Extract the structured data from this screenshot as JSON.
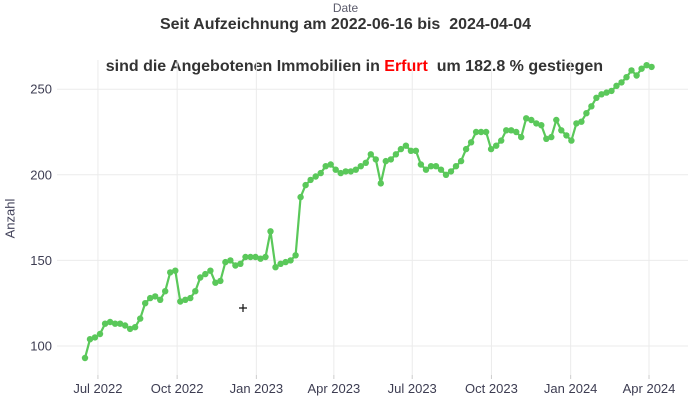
{
  "x_axis_title": "Date",
  "title": {
    "line1": "Seit Aufzeichnung am 2022-06-16 bis  2024-04-04",
    "line2_prefix": "sind die Angebotenen Immobilien in ",
    "city": "Erfurt",
    "line2_suffix": "  um 182.8 % gestiegen"
  },
  "y_axis": {
    "title": "Anzahl",
    "tick_values": [
      100,
      150,
      200,
      250
    ]
  },
  "x_axis": {
    "tick_labels": [
      "Jul 2022",
      "Oct 2022",
      "Jan 2023",
      "Apr 2023",
      "Jul 2023",
      "Oct 2023",
      "Jan 2024",
      "Apr 2024"
    ]
  },
  "colors": {
    "line": "#5ac85a",
    "title_text": "#333333",
    "city_highlight": "#ff0000",
    "axis_text": "#3d3d52",
    "gridline": "#ebebeb",
    "tick_mark": "#cccccc",
    "background": "#ffffff"
  },
  "chart_data": {
    "type": "line",
    "title": "Seit Aufzeichnung am 2022-06-16 bis 2024-04-04 sind die Angebotenen Immobilien in Erfurt um 182.8 % gestiegen",
    "series_name": "Angebotene Immobilien Erfurt",
    "start_date": "2022-06-16",
    "end_date": "2024-04-04",
    "percent_change": 182.8,
    "start_value": 93,
    "end_value": 263,
    "markers": true,
    "grid": true,
    "legend": "none",
    "xlabel": "Date",
    "ylabel": "Anzahl",
    "ylim": [
      82,
      272
    ],
    "x_tick_labels": [
      "Jul 2022",
      "Oct 2022",
      "Jan 2023",
      "Apr 2023",
      "Jul 2023",
      "Oct 2023",
      "Jan 2024",
      "Apr 2024"
    ],
    "y_ticks": [
      100,
      150,
      200,
      250
    ],
    "values": [
      93,
      104,
      105,
      107,
      113,
      114,
      113,
      113,
      112,
      110,
      111,
      116,
      125,
      128,
      129,
      127,
      132,
      143,
      144,
      126,
      127,
      128,
      132,
      140,
      142,
      144,
      137,
      138,
      149,
      150,
      147,
      148,
      152,
      152,
      152,
      151,
      152,
      167,
      146,
      148,
      149,
      150,
      153,
      187,
      194,
      197,
      199,
      201,
      205,
      206,
      203,
      201,
      202,
      202,
      203,
      205,
      207,
      212,
      209,
      195,
      208,
      209,
      212,
      215,
      217,
      214,
      214,
      206,
      203,
      205,
      205,
      203,
      200,
      202,
      205,
      208,
      215,
      219,
      225,
      225,
      225,
      215,
      217,
      220,
      226,
      226,
      225,
      222,
      233,
      232,
      230,
      229,
      221,
      222,
      232,
      226,
      223,
      220,
      230,
      231,
      236,
      240,
      245,
      247,
      248,
      249,
      252,
      254,
      257,
      261,
      258,
      262,
      264,
      263
    ]
  }
}
